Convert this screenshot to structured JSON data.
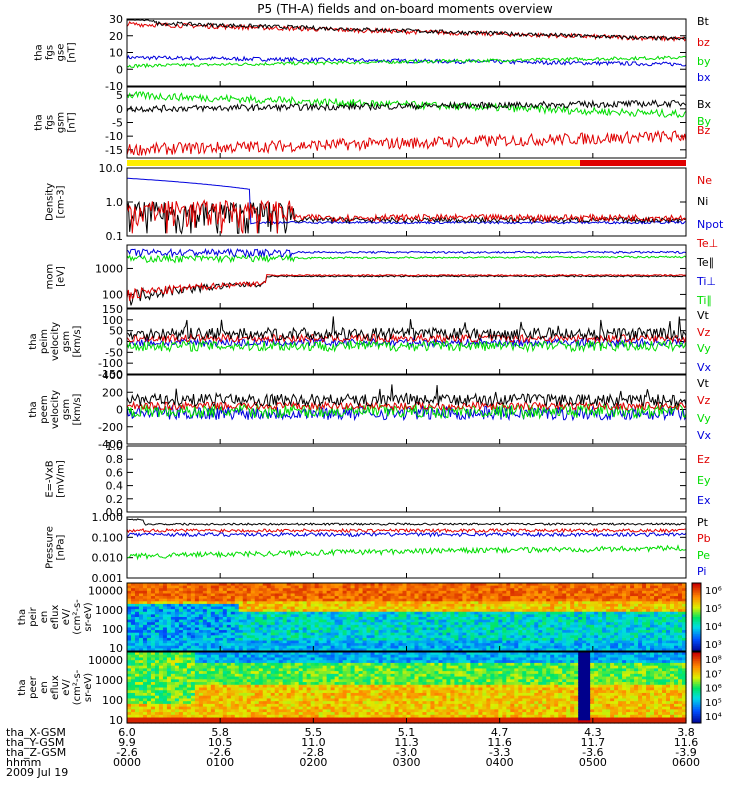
{
  "title": "P5 (TH-A) fields and on-board moments overview",
  "colors": {
    "black": "#000000",
    "red": "#e00000",
    "green": "#00dd00",
    "blue": "#0000dd",
    "yellow": "#ffee00"
  },
  "chart_data": [
    {
      "type": "line",
      "ylabel": [
        "tha",
        "fgs",
        "gse",
        "[nT]"
      ],
      "ylim": [
        -10,
        30
      ],
      "ticks": [
        30,
        20,
        10,
        0,
        -10
      ],
      "legend": [
        {
          "name": "Bt",
          "color": "black"
        },
        {
          "name": "bz",
          "color": "red"
        },
        {
          "name": "by",
          "color": "green"
        },
        {
          "name": "bx",
          "color": "blue"
        }
      ]
    },
    {
      "type": "line",
      "ylabel": [
        "tha",
        "fgs",
        "gsm",
        "[nT]"
      ],
      "ylim": [
        -18,
        8
      ],
      "ticks": [
        5,
        0,
        -5,
        -10,
        -15
      ],
      "legend": [
        {
          "name": "Bx",
          "color": "black"
        },
        {
          "name": "By",
          "color": "green"
        },
        {
          "name": "Bz",
          "color": "red"
        }
      ]
    },
    {
      "type": "line",
      "ylabel": [
        "Density",
        "[cm-3]"
      ],
      "scale": "log",
      "ylim": [
        0.1,
        10
      ],
      "ticks": [
        "10.0",
        "1.0",
        "0.1"
      ],
      "legend": [
        {
          "name": "Ne",
          "color": "red"
        },
        {
          "name": "Ni",
          "color": "black"
        },
        {
          "name": "Npot",
          "color": "blue"
        }
      ]
    },
    {
      "type": "line",
      "ylabel": [
        "mom",
        "[eV]"
      ],
      "scale": "log",
      "ylim": [
        30,
        8000
      ],
      "ticks": [
        "1000",
        "100"
      ],
      "legend": [
        {
          "name": "Te⊥",
          "color": "red"
        },
        {
          "name": "Te∥",
          "color": "black"
        },
        {
          "name": "Ti⊥",
          "color": "blue"
        },
        {
          "name": "Ti∥",
          "color": "green"
        }
      ]
    },
    {
      "type": "line",
      "ylabel": [
        "tha",
        "peim",
        "velocity",
        "gsm",
        "[km/s]"
      ],
      "ylim": [
        -150,
        150
      ],
      "ticks": [
        150,
        100,
        50,
        0,
        -50,
        -100,
        -150
      ],
      "legend": [
        {
          "name": "Vt",
          "color": "black"
        },
        {
          "name": "Vz",
          "color": "red"
        },
        {
          "name": "Vy",
          "color": "green"
        },
        {
          "name": "Vx",
          "color": "blue"
        }
      ]
    },
    {
      "type": "line",
      "ylabel": [
        "tha",
        "peem",
        "velocity",
        "gsm",
        "[km/s]"
      ],
      "ylim": [
        -400,
        400
      ],
      "ticks": [
        400,
        200,
        0,
        -200,
        -400
      ],
      "legend": [
        {
          "name": "Vt",
          "color": "black"
        },
        {
          "name": "Vz",
          "color": "red"
        },
        {
          "name": "Vy",
          "color": "green"
        },
        {
          "name": "Vx",
          "color": "blue"
        }
      ]
    },
    {
      "type": "line",
      "ylabel": [
        "E=-VxB",
        "[mV/m]"
      ],
      "ylim": [
        0,
        1
      ],
      "ticks": [
        "1.0",
        "0.8",
        "0.6",
        "0.4",
        "0.2",
        "0.0"
      ],
      "legend": [
        {
          "name": "Ez",
          "color": "red"
        },
        {
          "name": "Ey",
          "color": "green"
        },
        {
          "name": "Ex",
          "color": "blue"
        }
      ]
    },
    {
      "type": "line",
      "ylabel": [
        "Pressure",
        "[nPa]"
      ],
      "scale": "log",
      "ylim": [
        0.001,
        1
      ],
      "ticks": [
        "1.000",
        "0.100",
        "0.010",
        "0.001"
      ],
      "legend": [
        {
          "name": "Pt",
          "color": "black"
        },
        {
          "name": "Pb",
          "color": "red"
        },
        {
          "name": "Pe",
          "color": "green"
        },
        {
          "name": "Pi",
          "color": "blue"
        }
      ]
    },
    {
      "type": "heatmap",
      "ylabel": [
        "tha",
        "peir",
        "en",
        "eflux",
        "eV/",
        "(cm²-s-",
        "sr-eV)"
      ],
      "scale": "log",
      "ylim": [
        7,
        25000
      ],
      "ticks": [
        "10000",
        "1000",
        "100",
        "10"
      ],
      "colorbar": [
        "10⁶",
        "10⁵",
        "10⁴",
        "10³"
      ]
    },
    {
      "type": "heatmap",
      "ylabel": [
        "tha",
        "peer",
        "en",
        "eflux",
        "eV/",
        "(cm²-s-",
        "sr-eV)"
      ],
      "scale": "log",
      "ylim": [
        7,
        25000
      ],
      "ticks": [
        "10000",
        "1000",
        "100",
        "10"
      ],
      "colorbar": [
        "10⁸",
        "10⁷",
        "10⁶",
        "10⁵",
        "10⁴"
      ]
    }
  ],
  "xaxis": {
    "rows": [
      {
        "label": "tha_X-GSM",
        "values": [
          "6.0",
          "5.8",
          "5.5",
          "5.1",
          "4.7",
          "4.3",
          "3.8"
        ]
      },
      {
        "label": "tha_Y-GSM",
        "values": [
          "9.9",
          "10.5",
          "11.0",
          "11.3",
          "11.6",
          "11.7",
          "11.6"
        ]
      },
      {
        "label": "tha_Z-GSM",
        "values": [
          "-2.6",
          "-2.6",
          "-2.8",
          "-3.0",
          "-3.3",
          "-3.6",
          "-3.9"
        ]
      },
      {
        "label": "hhmm",
        "values": [
          "0000",
          "0100",
          "0200",
          "0300",
          "0400",
          "0500",
          "0600"
        ]
      }
    ],
    "date": "2009 Jul 19"
  }
}
